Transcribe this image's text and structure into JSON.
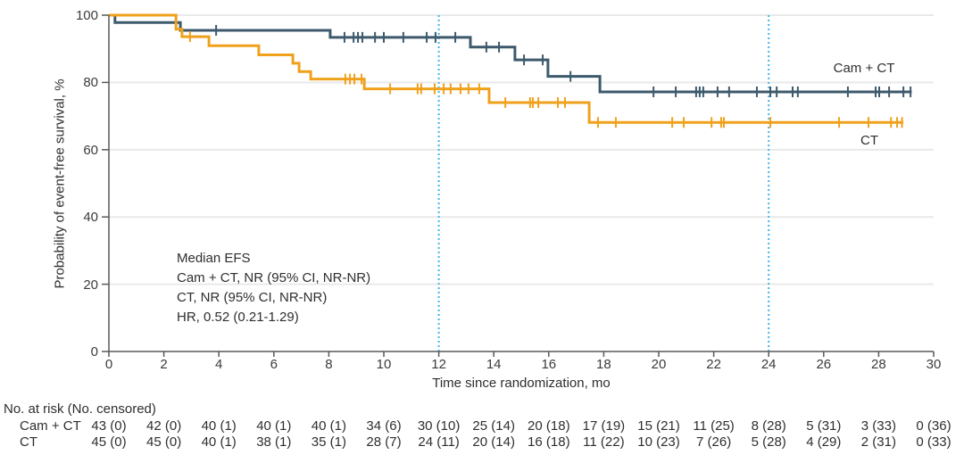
{
  "figure": {
    "y_axis_title": "Probability of event-free survival, %",
    "x_axis_title": "Time since randomization, mo",
    "annotation_lines": [
      "Median EFS",
      "Cam + CT, NR (95% CI, NR-NR)",
      "CT, NR (95% CI, NR-NR)",
      "HR, 0.52 (0.21-1.29)"
    ],
    "curve_labels": {
      "cam_ct": "Cam + CT",
      "ct": "CT"
    },
    "colors": {
      "cam_ct_line": "#3d5a6c",
      "ct_line": "#f0a11c",
      "reference_line": "#41b6e6",
      "gridline": "#e9e9e9",
      "axis": "#58595b",
      "text": "#2e2e2e"
    }
  },
  "chart_data": {
    "type": "line",
    "subtype": "kaplan-meier-step",
    "title": "",
    "xlabel": "Time since randomization, mo",
    "ylabel": "Probability of event-free survival, %",
    "xlim": [
      0,
      30
    ],
    "ylim": [
      0,
      100
    ],
    "x_ticks": [
      0,
      2,
      4,
      6,
      8,
      10,
      12,
      14,
      16,
      18,
      20,
      22,
      24,
      26,
      28,
      30
    ],
    "y_ticks": [
      0,
      20,
      40,
      60,
      80,
      100
    ],
    "grid_y_values": [
      20,
      40,
      60,
      80,
      100
    ],
    "reference_lines_x": [
      12,
      24
    ],
    "legend_position": "inline-right",
    "series": [
      {
        "name": "Cam + CT",
        "color": "#3d5a6c",
        "steps": [
          [
            0,
            100
          ],
          [
            0.22,
            97.8
          ],
          [
            2.6,
            95.5
          ],
          [
            8.05,
            93.4
          ],
          [
            13.15,
            90.5
          ],
          [
            14.77,
            86.7
          ],
          [
            15.97,
            81.8
          ],
          [
            17.86,
            77.2
          ]
        ],
        "end_time": 29.2,
        "censor_times": [
          3.9,
          8.57,
          8.9,
          9.06,
          9.22,
          9.68,
          10.0,
          10.71,
          11.56,
          11.88,
          12.6,
          13.73,
          14.19,
          15.1,
          15.78,
          16.79,
          19.81,
          20.62,
          21.36,
          21.49,
          21.62,
          22.14,
          22.56,
          23.57,
          24.06,
          24.29,
          24.87,
          25.06,
          26.88,
          27.89,
          28.02,
          28.38,
          28.9,
          29.16
        ]
      },
      {
        "name": "CT",
        "color": "#f0a11c",
        "steps": [
          [
            0,
            100
          ],
          [
            2.44,
            95.8
          ],
          [
            2.66,
            93.6
          ],
          [
            3.64,
            90.9
          ],
          [
            5.45,
            88.2
          ],
          [
            6.69,
            85.7
          ],
          [
            6.92,
            83.2
          ],
          [
            7.34,
            81.0
          ],
          [
            9.29,
            78.1
          ],
          [
            13.83,
            74.0
          ],
          [
            17.47,
            68.1
          ]
        ],
        "end_time": 28.9,
        "censor_times": [
          2.95,
          8.6,
          8.77,
          8.93,
          9.19,
          10.23,
          11.23,
          11.36,
          11.85,
          12.18,
          12.43,
          12.79,
          13.08,
          13.47,
          14.42,
          15.32,
          15.42,
          15.62,
          16.33,
          16.59,
          17.79,
          18.44,
          20.49,
          20.91,
          21.92,
          22.27,
          22.37,
          24.06,
          26.56,
          27.63,
          28.45,
          28.67,
          28.85
        ]
      }
    ]
  },
  "risk_table": {
    "title": "No. at risk (No. censored)",
    "times": [
      0,
      2,
      4,
      6,
      8,
      10,
      12,
      14,
      16,
      18,
      20,
      22,
      24,
      26,
      28,
      30
    ],
    "rows": [
      {
        "label": "Cam + CT",
        "values": [
          "43 (0)",
          "42 (0)",
          "40 (1)",
          "40 (1)",
          "40 (1)",
          "34 (6)",
          "30 (10)",
          "25 (14)",
          "20 (18)",
          "17 (19)",
          "15 (21)",
          "11 (25)",
          "8 (28)",
          "5 (31)",
          "3 (33)",
          "0 (36)"
        ]
      },
      {
        "label": "CT",
        "values": [
          "45 (0)",
          "45 (0)",
          "40 (1)",
          "38 (1)",
          "35 (1)",
          "28 (7)",
          "24 (11)",
          "20 (14)",
          "16 (18)",
          "11 (22)",
          "10 (23)",
          "7 (26)",
          "5 (28)",
          "4 (29)",
          "2 (31)",
          "0 (33)"
        ]
      }
    ]
  }
}
